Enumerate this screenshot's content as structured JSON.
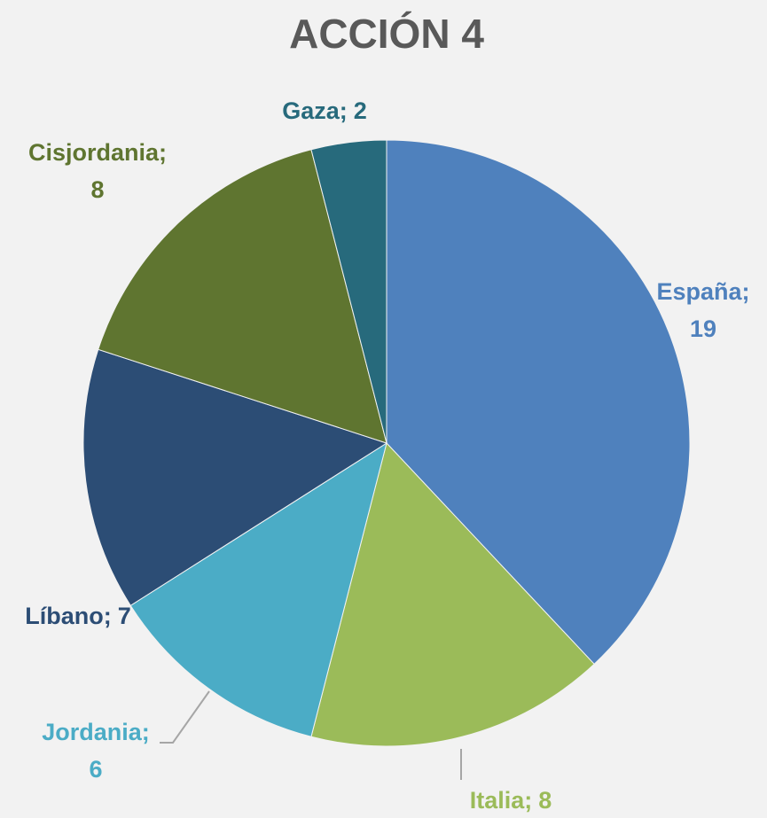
{
  "chart_data": {
    "type": "pie",
    "title": "ACCIÓN 4",
    "categories": [
      "España",
      "Italia",
      "Jordania",
      "Líbano",
      "Cisjordania",
      "Gaza"
    ],
    "values": [
      19,
      8,
      6,
      7,
      8,
      2
    ],
    "colors": [
      "#4f81bd",
      "#9bbb59",
      "#4bacc6",
      "#2c4d75",
      "#5f7530",
      "#276a7c"
    ],
    "label_separator": ";"
  }
}
